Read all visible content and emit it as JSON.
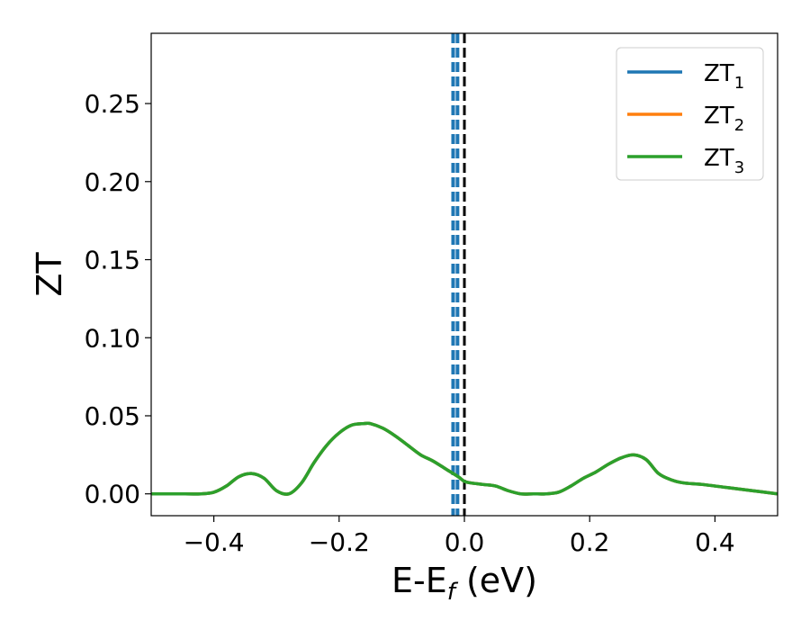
{
  "chart_data": {
    "type": "line",
    "xlabel": "E-E",
    "xlabel_sub": "f",
    "xlabel_unit": " (eV)",
    "ylabel": "ZT",
    "xlim": [
      -0.5,
      0.5
    ],
    "ylim": [
      -0.014,
      0.295
    ],
    "x_ticks": [
      -0.4,
      -0.2,
      0.0,
      0.2,
      0.4
    ],
    "x_tick_labels": [
      "−0.4",
      "−0.2",
      "0.0",
      "0.2",
      "0.4"
    ],
    "y_ticks": [
      0.0,
      0.05,
      0.1,
      0.15,
      0.2,
      0.25
    ],
    "y_tick_labels": [
      "0.00",
      "0.05",
      "0.10",
      "0.15",
      "0.20",
      "0.25"
    ],
    "grid": false,
    "legend": {
      "placement": "top-right"
    },
    "vertical_lines": [
      {
        "x": -0.018,
        "style": "dashed",
        "color": "#1f77b4"
      },
      {
        "x": -0.011,
        "style": "dashed",
        "color": "#1f77b4"
      },
      {
        "x": 0.0,
        "style": "dashed",
        "color": "#000000"
      }
    ],
    "x": [
      -0.5,
      -0.46,
      -0.42,
      -0.4,
      -0.38,
      -0.36,
      -0.34,
      -0.32,
      -0.3,
      -0.28,
      -0.26,
      -0.24,
      -0.22,
      -0.2,
      -0.18,
      -0.16,
      -0.15,
      -0.13,
      -0.11,
      -0.09,
      -0.07,
      -0.05,
      -0.03,
      -0.01,
      0.0,
      0.01,
      0.03,
      0.05,
      0.07,
      0.09,
      0.11,
      0.13,
      0.15,
      0.17,
      0.19,
      0.21,
      0.23,
      0.25,
      0.27,
      0.29,
      0.31,
      0.33,
      0.35,
      0.38,
      0.42,
      0.46,
      0.5
    ],
    "series": [
      {
        "name": "ZT",
        "sub": "1",
        "color": "#1f77b4",
        "values": [
          0.0,
          0.0,
          0.0,
          0.001,
          0.005,
          0.011,
          0.013,
          0.01,
          0.002,
          0.0,
          0.007,
          0.02,
          0.031,
          0.039,
          0.044,
          0.045,
          0.045,
          0.042,
          0.037,
          0.031,
          0.025,
          0.021,
          0.016,
          0.011,
          0.008,
          0.007,
          0.006,
          0.005,
          0.002,
          0.0,
          0.0,
          0.0,
          0.001,
          0.005,
          0.01,
          0.014,
          0.019,
          0.023,
          0.025,
          0.022,
          0.013,
          0.009,
          0.007,
          0.006,
          0.004,
          0.002,
          0.0
        ]
      },
      {
        "name": "ZT",
        "sub": "2",
        "color": "#ff7f0e",
        "values": [
          0.0,
          0.0,
          0.0,
          0.001,
          0.005,
          0.011,
          0.013,
          0.01,
          0.002,
          0.0,
          0.007,
          0.02,
          0.031,
          0.039,
          0.044,
          0.045,
          0.045,
          0.042,
          0.037,
          0.031,
          0.025,
          0.021,
          0.016,
          0.011,
          0.008,
          0.007,
          0.006,
          0.005,
          0.002,
          0.0,
          0.0,
          0.0,
          0.001,
          0.005,
          0.01,
          0.014,
          0.019,
          0.023,
          0.025,
          0.022,
          0.013,
          0.009,
          0.007,
          0.006,
          0.004,
          0.002,
          0.0
        ]
      },
      {
        "name": "ZT",
        "sub": "3",
        "color": "#2ca02c",
        "values": [
          0.0,
          0.0,
          0.0,
          0.001,
          0.005,
          0.011,
          0.013,
          0.01,
          0.002,
          0.0,
          0.007,
          0.02,
          0.031,
          0.039,
          0.044,
          0.045,
          0.045,
          0.042,
          0.037,
          0.031,
          0.025,
          0.021,
          0.016,
          0.011,
          0.008,
          0.007,
          0.006,
          0.005,
          0.002,
          0.0,
          0.0,
          0.0,
          0.001,
          0.005,
          0.01,
          0.014,
          0.019,
          0.023,
          0.025,
          0.022,
          0.013,
          0.009,
          0.007,
          0.006,
          0.004,
          0.002,
          0.0
        ]
      }
    ]
  }
}
